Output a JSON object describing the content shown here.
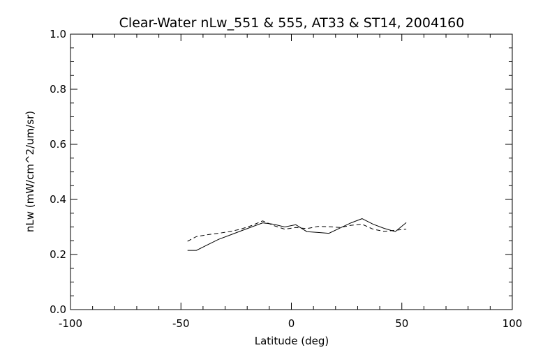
{
  "chart_data": {
    "type": "line",
    "title": "Clear-Water nLw_551 & 555, AT33 & ST14, 2004160",
    "xlabel": "Latitude (deg)",
    "ylabel": "nLw (mW/cm^2/um/sr)",
    "xlim": [
      -100,
      100
    ],
    "ylim": [
      0.0,
      1.0
    ],
    "x_ticks": [
      "-100",
      "-50",
      "0",
      "50",
      "100"
    ],
    "y_ticks": [
      "0.0",
      "0.2",
      "0.4",
      "0.6",
      "0.8",
      "1.0"
    ],
    "grid": false,
    "series": [
      {
        "line_style": "solid",
        "color": "#000000",
        "x": [
          -47,
          -43,
          -38,
          -33,
          -28,
          -23,
          -18,
          -13,
          -8,
          -3,
          2,
          7,
          12,
          17,
          22,
          27,
          32,
          37,
          42,
          47,
          52
        ],
        "y": [
          0.215,
          0.215,
          0.235,
          0.255,
          0.27,
          0.285,
          0.3,
          0.315,
          0.31,
          0.3,
          0.308,
          0.283,
          0.28,
          0.277,
          0.296,
          0.315,
          0.33,
          0.31,
          0.295,
          0.283,
          0.316
        ]
      },
      {
        "line_style": "dashed",
        "color": "#000000",
        "x": [
          -47,
          -43,
          -38,
          -33,
          -28,
          -23,
          -18,
          -13,
          -8,
          -3,
          2,
          7,
          12,
          17,
          22,
          27,
          32,
          37,
          42,
          47,
          52
        ],
        "y": [
          0.248,
          0.265,
          0.272,
          0.277,
          0.283,
          0.292,
          0.305,
          0.322,
          0.305,
          0.292,
          0.298,
          0.294,
          0.302,
          0.301,
          0.298,
          0.306,
          0.31,
          0.292,
          0.284,
          0.288,
          0.292
        ]
      }
    ]
  }
}
